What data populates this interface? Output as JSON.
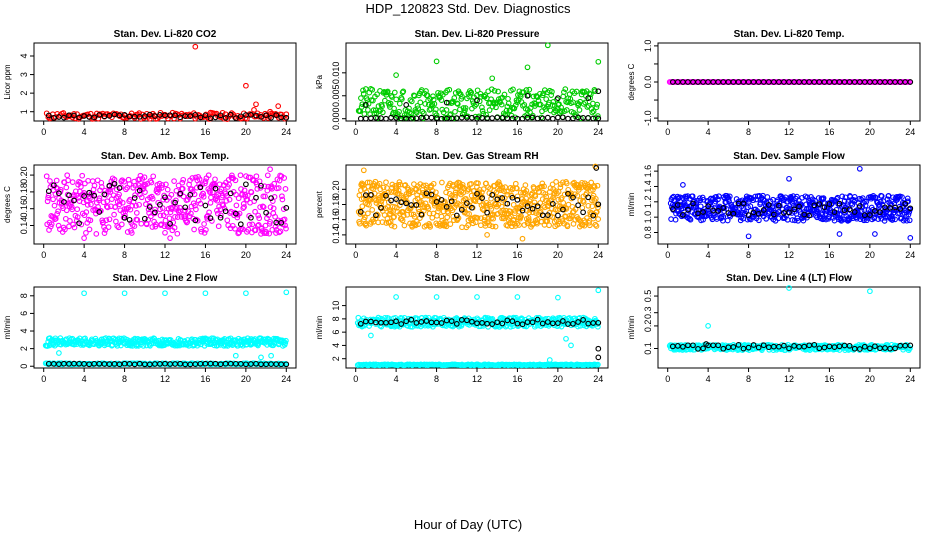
{
  "page": {
    "title": "HDP_120823  Std. Dev. Diagnostics",
    "xlabel": "Hour of Day (UTC)"
  },
  "colors": {
    "reference_points": "#000000"
  },
  "chart_data": [
    {
      "type": "scatter",
      "title": "Stan. Dev. Li-820 CO2",
      "ylabel": "Licor ppm",
      "xlim": [
        -0.96,
        24.96
      ],
      "ylim": [
        0.5,
        4.7
      ],
      "x_ticks": [
        0,
        4,
        8,
        12,
        16,
        20,
        24
      ],
      "y_ticks": [
        1,
        2,
        3,
        4
      ],
      "y_tick_labels": [
        "1",
        "2",
        "3",
        "4"
      ],
      "series": [
        {
          "color": "#ff0000",
          "fill": "none",
          "band": {
            "x_start": 0.3,
            "x_end": 24,
            "step": 0.15,
            "y_low": 0.6,
            "y_high": 0.95,
            "seed": 11
          },
          "outliers": [
            [
              15,
              4.5
            ],
            [
              20,
              2.4
            ],
            [
              21,
              1.4
            ],
            [
              22.4,
              1.0
            ],
            [
              23.2,
              1.3
            ],
            [
              20.8,
              1.1
            ],
            [
              16.5,
              0.95
            ]
          ]
        },
        {
          "color": "#000000",
          "fill": "none",
          "band": {
            "x_start": 0.5,
            "x_end": 24,
            "step": 0.5,
            "y_low": 0.65,
            "y_high": 0.85,
            "seed": 12
          },
          "outliers": []
        }
      ]
    },
    {
      "type": "scatter",
      "title": "Stan. Dev. Li-820 Pressure",
      "ylabel": "kPa",
      "xlim": [
        -0.96,
        24.96
      ],
      "ylim": [
        -0.0005,
        0.0165
      ],
      "x_ticks": [
        0,
        4,
        8,
        12,
        16,
        20,
        24
      ],
      "y_ticks": [
        0,
        0.005,
        0.01
      ],
      "y_tick_labels": [
        "0.000",
        "0.005",
        "0.010"
      ],
      "series": [
        {
          "color": "#00cc00",
          "fill": "none",
          "band": {
            "x_start": 0.3,
            "x_end": 24,
            "step": 0.07,
            "y_low": 0.0,
            "y_high": 0.0065,
            "seed": 21
          },
          "outliers": [
            [
              8,
              0.0125
            ],
            [
              17,
              0.0112
            ],
            [
              19,
              0.016
            ],
            [
              24,
              0.0124
            ],
            [
              4,
              0.0095
            ],
            [
              13.5,
              0.0088
            ]
          ]
        },
        {
          "color": "#000000",
          "fill": "none",
          "band": {
            "x_start": 0.5,
            "x_end": 24,
            "step": 0.5,
            "y_low": 0.0,
            "y_high": 0.0003,
            "seed": 22
          },
          "outliers": [
            [
              1,
              0.003
            ],
            [
              5,
              0.003
            ],
            [
              9,
              0.0035
            ],
            [
              12,
              0.004
            ],
            [
              17,
              0.005
            ],
            [
              20,
              0.0045
            ],
            [
              23,
              0.0045
            ],
            [
              24,
              0.006
            ]
          ]
        }
      ]
    },
    {
      "type": "scatter",
      "title": "Stan. Dev. Li-820 Temp.",
      "ylabel": "degrees C",
      "xlim": [
        -0.96,
        24.96
      ],
      "ylim": [
        -1.08,
        1.08
      ],
      "x_ticks": [
        0,
        4,
        8,
        12,
        16,
        20,
        24
      ],
      "y_ticks": [
        -1,
        -0.5,
        0,
        0.5,
        1
      ],
      "y_tick_labels": [
        "-1.0",
        "",
        "0.0",
        "",
        "1.0"
      ],
      "series": [
        {
          "color": "#ff00ff",
          "fill": "none",
          "band": {
            "x_start": 0.2,
            "x_end": 24,
            "step": 0.12,
            "y_low": 0.0,
            "y_high": 0.0,
            "seed": 31
          },
          "outliers": []
        },
        {
          "color": "#000000",
          "fill": "none",
          "band": {
            "x_start": 0.5,
            "x_end": 24,
            "step": 0.5,
            "y_low": 0.0,
            "y_high": 0.0,
            "seed": 32
          },
          "outliers": []
        }
      ]
    },
    {
      "type": "scatter",
      "title": "Stan. Dev. Amb. Box Temp.",
      "ylabel": "degrees C",
      "xlim": [
        -0.96,
        24.96
      ],
      "ylim": [
        0.118,
        0.212
      ],
      "x_ticks": [
        0,
        4,
        8,
        12,
        16,
        20,
        24
      ],
      "y_ticks": [
        0.14,
        0.16,
        0.18,
        0.2
      ],
      "y_tick_labels": [
        "0.14",
        "0.16",
        "0.18",
        "0.20"
      ],
      "series": [
        {
          "color": "#ff00ff",
          "fill": "none",
          "band": {
            "x_start": 0.3,
            "x_end": 24,
            "step": 0.045,
            "y_low": 0.13,
            "y_high": 0.2,
            "seed": 41
          },
          "outliers": [
            [
              22.4,
              0.207
            ],
            [
              12.5,
              0.125
            ],
            [
              4,
              0.125
            ]
          ]
        },
        {
          "color": "#000000",
          "fill": "none",
          "band": {
            "x_start": 0.5,
            "x_end": 24,
            "step": 0.5,
            "y_low": 0.14,
            "y_high": 0.19,
            "seed": 42
          },
          "outliers": []
        }
      ]
    },
    {
      "type": "scatter",
      "title": "Stan. Dev. Gas Stream RH",
      "ylabel": "percent",
      "xlim": [
        -0.96,
        24.96
      ],
      "ylim": [
        0.128,
        0.232
      ],
      "x_ticks": [
        0,
        4,
        8,
        12,
        16,
        20,
        24
      ],
      "y_ticks": [
        0.14,
        0.16,
        0.18,
        0.2
      ],
      "y_tick_labels": [
        "0.14",
        "0.16",
        "0.18",
        "0.20"
      ],
      "series": [
        {
          "color": "#ffa500",
          "fill": "none",
          "band": {
            "x_start": 0.3,
            "x_end": 24,
            "step": 0.035,
            "y_low": 0.15,
            "y_high": 0.21,
            "seed": 51
          },
          "outliers": [
            [
              0.8,
              0.225
            ],
            [
              23.7,
              0.23
            ],
            [
              16.5,
              0.135
            ],
            [
              13,
              0.14
            ]
          ]
        },
        {
          "color": "#000000",
          "fill": "none",
          "band": {
            "x_start": 0.5,
            "x_end": 24,
            "step": 0.5,
            "y_low": 0.165,
            "y_high": 0.195,
            "seed": 52
          },
          "outliers": [
            [
              23.8,
              0.228
            ]
          ]
        }
      ]
    },
    {
      "type": "scatter",
      "title": "Stan. Dev. Sample Flow",
      "ylabel": "ml/min",
      "xlim": [
        -0.96,
        24.96
      ],
      "ylim": [
        0.65,
        1.68
      ],
      "x_ticks": [
        0,
        4,
        8,
        12,
        16,
        20,
        24
      ],
      "y_ticks": [
        0.8,
        1.0,
        1.2,
        1.4,
        1.6
      ],
      "y_tick_labels": [
        "0.8",
        "1.0",
        "1.2",
        "1.4",
        "1.6"
      ],
      "series": [
        {
          "color": "#0000ff",
          "fill": "none",
          "band": {
            "x_start": 0.3,
            "x_end": 24,
            "step": 0.04,
            "y_low": 0.95,
            "y_high": 1.28,
            "seed": 61
          },
          "outliers": [
            [
              1.5,
              1.42
            ],
            [
              12,
              1.5
            ],
            [
              19,
              1.63
            ],
            [
              8,
              0.75
            ],
            [
              17,
              0.78
            ],
            [
              20.5,
              0.78
            ],
            [
              24,
              0.73
            ]
          ]
        },
        {
          "color": "#000000",
          "fill": "none",
          "band": {
            "x_start": 0.5,
            "x_end": 24,
            "step": 0.5,
            "y_low": 1.02,
            "y_high": 1.18,
            "seed": 62
          },
          "outliers": []
        }
      ]
    },
    {
      "type": "scatter",
      "title": "Stan. Dev. Line 2 Flow",
      "ylabel": "ml/min",
      "xlim": [
        -0.96,
        24.96
      ],
      "ylim": [
        -0.2,
        9.0
      ],
      "x_ticks": [
        0,
        4,
        8,
        12,
        16,
        20,
        24
      ],
      "y_ticks": [
        0,
        2,
        4,
        6,
        8
      ],
      "y_tick_labels": [
        "0",
        "2",
        "4",
        "6",
        "8"
      ],
      "series": [
        {
          "color": "#00ffff",
          "fill": "none",
          "band": {
            "x_start": 0.2,
            "x_end": 24,
            "step": 0.06,
            "y_low": 2.3,
            "y_high": 3.2,
            "seed": 71
          },
          "outliers": [
            [
              4,
              8.3
            ],
            [
              8,
              8.3
            ],
            [
              12,
              8.3
            ],
            [
              16,
              8.3
            ],
            [
              20,
              8.3
            ],
            [
              24,
              8.4
            ],
            [
              1.5,
              1.5
            ],
            [
              19,
              1.2
            ],
            [
              21.5,
              1.0
            ],
            [
              22.5,
              1.2
            ]
          ]
        },
        {
          "color": "#00ffff",
          "fill": "none",
          "band": {
            "x_start": 0.2,
            "x_end": 24,
            "step": 0.12,
            "y_low": 0.2,
            "y_high": 0.35,
            "seed": 72
          },
          "outliers": []
        },
        {
          "color": "#000000",
          "fill": "none",
          "band": {
            "x_start": 0.5,
            "x_end": 24,
            "step": 0.5,
            "y_low": 0.2,
            "y_high": 0.3,
            "seed": 73
          },
          "outliers": []
        }
      ]
    },
    {
      "type": "scatter",
      "title": "Stan. Dev. Line 3 Flow",
      "ylabel": "ml/min",
      "xlim": [
        -0.96,
        24.96
      ],
      "ylim": [
        0.6,
        12.8
      ],
      "x_ticks": [
        0,
        4,
        8,
        12,
        16,
        20,
        24
      ],
      "y_ticks": [
        2,
        4,
        6,
        8,
        10
      ],
      "y_tick_labels": [
        "2",
        "4",
        "6",
        "8",
        "10"
      ],
      "series": [
        {
          "color": "#00ffff",
          "fill": "none",
          "band": {
            "x_start": 0.2,
            "x_end": 24,
            "step": 0.06,
            "y_low": 6.8,
            "y_high": 8.2,
            "seed": 81
          },
          "outliers": [
            [
              4,
              11.3
            ],
            [
              8,
              11.3
            ],
            [
              12,
              11.3
            ],
            [
              16,
              11.3
            ],
            [
              20,
              11.2
            ],
            [
              24,
              12.3
            ],
            [
              1.5,
              5.5
            ],
            [
              20.8,
              5.0
            ],
            [
              21.3,
              4.0
            ],
            [
              19.2,
              1.8
            ]
          ]
        },
        {
          "color": "#00ffff",
          "fill": "none",
          "band": {
            "x_start": 0.2,
            "x_end": 24,
            "step": 0.12,
            "y_low": 1.0,
            "y_high": 1.15,
            "seed": 82
          },
          "outliers": []
        },
        {
          "color": "#000000",
          "fill": "none",
          "band": {
            "x_start": 0.5,
            "x_end": 24,
            "step": 0.5,
            "y_low": 7.2,
            "y_high": 7.9,
            "seed": 83
          },
          "outliers": [
            [
              24,
              3.5
            ],
            [
              24,
              2.2
            ]
          ]
        }
      ]
    },
    {
      "type": "scatter",
      "title": "Stan. Dev. Line 4 (LT) Flow",
      "ylabel": "ml/min",
      "xlim": [
        -0.96,
        24.96
      ],
      "ylim": [
        0.055,
        0.66
      ],
      "x_ticks": [
        0,
        4,
        8,
        12,
        16,
        20,
        24
      ],
      "y_ticks": [
        0.1,
        0.2,
        0.3,
        0.5
      ],
      "y_tick_labels": [
        "0.1",
        "0.2",
        "0.3",
        "0.5"
      ],
      "y_scale": "log",
      "series": [
        {
          "color": "#00ffff",
          "fill": "none",
          "band": {
            "x_start": 0.2,
            "x_end": 24,
            "step": 0.06,
            "y_low": 0.095,
            "y_high": 0.112,
            "seed": 91
          },
          "outliers": [
            [
              4,
              0.2
            ],
            [
              12,
              0.64
            ],
            [
              20,
              0.58
            ]
          ]
        },
        {
          "color": "#000000",
          "fill": "none",
          "band": {
            "x_start": 0.5,
            "x_end": 24,
            "step": 0.5,
            "y_low": 0.098,
            "y_high": 0.112,
            "seed": 92
          },
          "outliers": [
            [
              3.8,
              0.115
            ]
          ]
        }
      ]
    }
  ]
}
